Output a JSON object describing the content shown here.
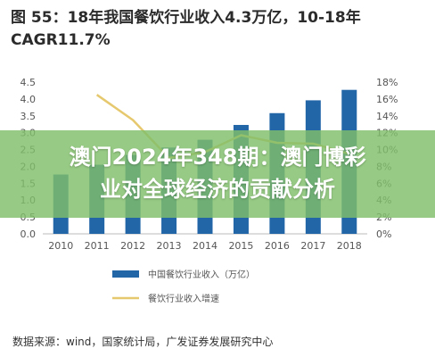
{
  "chart_data": {
    "type": "bar",
    "title": "图 55：18年我国餐饮行业收入4.3万亿，10-18年CAGR11.7%",
    "categories": [
      "2010",
      "2011",
      "2012",
      "2013",
      "2014",
      "2015",
      "2016",
      "2017",
      "2018"
    ],
    "series": [
      {
        "name": "中国餐饮行业收入（万亿）",
        "type": "bar",
        "axis": "left",
        "color": "#2366a8",
        "values": [
          1.76,
          2.05,
          2.34,
          2.56,
          2.79,
          3.23,
          3.58,
          3.96,
          4.27
        ]
      },
      {
        "name": "餐饮行业收入增速",
        "type": "line",
        "axis": "right",
        "color": "#e6c96e",
        "values": [
          null,
          16.5,
          13.5,
          9.0,
          9.7,
          11.7,
          10.8,
          10.7,
          9.5
        ]
      }
    ],
    "y_left": {
      "min": 0,
      "max": 4.5,
      "ticks": [
        "0.0",
        "0.5",
        "1.0",
        "1.5",
        "2.0",
        "2.5",
        "3.0",
        "3.5",
        "4.0",
        "4.5"
      ]
    },
    "y_right": {
      "min": 0,
      "max": 18,
      "ticks": [
        "0%",
        "2%",
        "4%",
        "6%",
        "8%",
        "10%",
        "12%",
        "14%",
        "16%",
        "18%"
      ]
    },
    "grid": false,
    "legend_position": "bottom"
  },
  "title_line1": "图 55：18年我国餐饮行业收入4.3万亿，10-18年",
  "title_line2": "CAGR11.7%",
  "overlay": {
    "line1": "澳门2024年348期：澳门博彩",
    "line2": "业对全球经济的贡献分析"
  },
  "source": "数据来源：wind，国家统计局，广发证券发展研究中心"
}
